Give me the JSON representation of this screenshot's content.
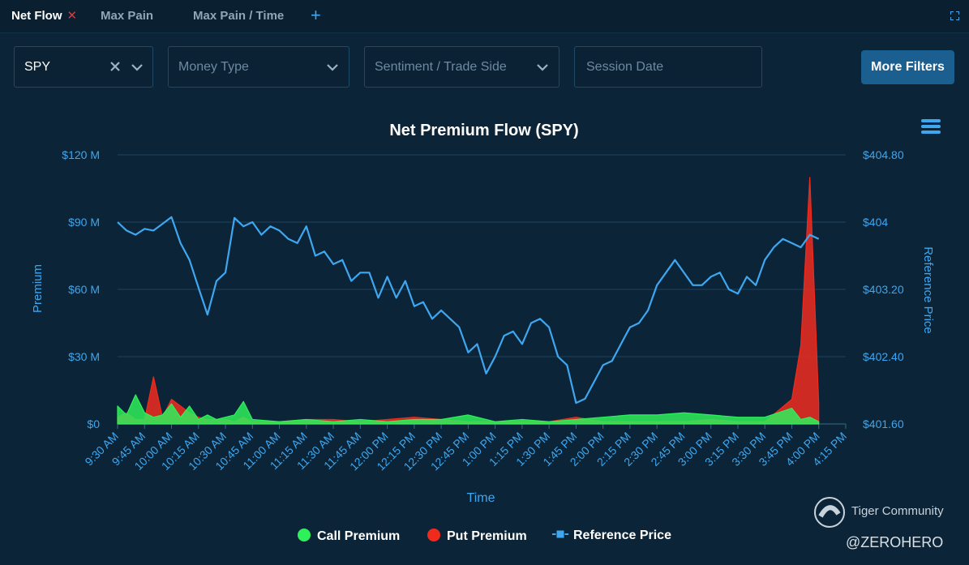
{
  "tabs": [
    {
      "label": "Net Flow",
      "active": true,
      "closable": true
    },
    {
      "label": "Max Pain",
      "active": false
    },
    {
      "label": "Max Pain / Time",
      "active": false
    }
  ],
  "filters": {
    "symbol": "SPY",
    "money_type_placeholder": "Money Type",
    "sentiment_placeholder": "Sentiment / Trade Side",
    "session_date_placeholder": "Session Date",
    "more_filters_label": "More Filters"
  },
  "watermark": {
    "brand": "Tiger Community",
    "user": "@ZEROHERO"
  },
  "colors": {
    "call": "#2ef05a",
    "put": "#ef2b1e",
    "price": "#3ea7f0",
    "accent": "#1a5f90"
  },
  "chart_data": {
    "type": "line",
    "title": "Net Premium Flow (SPY)",
    "xlabel": "Time",
    "ylabel": "Premium",
    "y2label": "Reference Price",
    "categories": [
      "9:30 AM",
      "9:45 AM",
      "10:00 AM",
      "10:15 AM",
      "10:30 AM",
      "10:45 AM",
      "11:00 AM",
      "11:15 AM",
      "11:30 AM",
      "11:45 AM",
      "12:00 PM",
      "12:15 PM",
      "12:30 PM",
      "12:45 PM",
      "1:00 PM",
      "1:15 PM",
      "1:30 PM",
      "1:45 PM",
      "2:00 PM",
      "2:15 PM",
      "2:30 PM",
      "2:45 PM",
      "3:00 PM",
      "3:15 PM",
      "3:30 PM",
      "3:45 PM",
      "4:00 PM",
      "4:15 PM"
    ],
    "y_ticks": [
      "$0",
      "$30 M",
      "$60 M",
      "$90 M",
      "$120 M"
    ],
    "y2_ticks": [
      "$401.60",
      "$402.40",
      "$403.20",
      "$404",
      "$404.80"
    ],
    "ylim": [
      0,
      120
    ],
    "y2lim": [
      401.6,
      404.8
    ],
    "grid": true,
    "legend_position": "bottom",
    "series": [
      {
        "name": "Call Premium",
        "axis": "left",
        "unit": "$M",
        "kind": "area",
        "x": [
          "9:30 AM",
          "9:35 AM",
          "9:40 AM",
          "9:45 AM",
          "9:50 AM",
          "9:55 AM",
          "10:00 AM",
          "10:05 AM",
          "10:10 AM",
          "10:15 AM",
          "10:20 AM",
          "10:25 AM",
          "10:30 AM",
          "10:35 AM",
          "10:40 AM",
          "10:45 AM",
          "11:00 AM",
          "11:15 AM",
          "11:30 AM",
          "11:45 AM",
          "12:00 PM",
          "12:15 PM",
          "12:30 PM",
          "12:45 PM",
          "1:00 PM",
          "1:15 PM",
          "1:30 PM",
          "1:45 PM",
          "2:00 PM",
          "2:15 PM",
          "2:30 PM",
          "2:45 PM",
          "3:00 PM",
          "3:15 PM",
          "3:30 PM",
          "3:45 PM",
          "3:50 PM",
          "3:55 PM",
          "4:00 PM"
        ],
        "values": [
          8,
          4,
          13,
          5,
          3,
          4,
          9,
          3,
          8,
          2,
          4,
          2,
          3,
          4,
          10,
          2,
          1,
          2,
          1,
          2,
          1,
          2,
          2,
          4,
          1,
          2,
          1,
          2,
          3,
          4,
          4,
          5,
          4,
          3,
          3,
          7,
          2,
          3,
          1
        ]
      },
      {
        "name": "Put Premium",
        "axis": "left",
        "unit": "$M",
        "kind": "area",
        "x": [
          "9:30 AM",
          "9:35 AM",
          "9:40 AM",
          "9:45 AM",
          "9:50 AM",
          "9:55 AM",
          "10:00 AM",
          "10:05 AM",
          "10:10 AM",
          "10:15 AM",
          "10:20 AM",
          "10:25 AM",
          "10:30 AM",
          "10:35 AM",
          "10:40 AM",
          "10:45 AM",
          "11:00 AM",
          "11:15 AM",
          "11:30 AM",
          "11:45 AM",
          "12:00 PM",
          "12:15 PM",
          "12:30 PM",
          "12:45 PM",
          "1:00 PM",
          "1:15 PM",
          "1:30 PM",
          "1:45 PM",
          "2:00 PM",
          "2:15 PM",
          "2:30 PM",
          "2:45 PM",
          "3:00 PM",
          "3:15 PM",
          "3:30 PM",
          "3:45 PM",
          "3:50 PM",
          "3:55 PM",
          "4:00 PM"
        ],
        "values": [
          3,
          5,
          2,
          2,
          21,
          3,
          11,
          8,
          5,
          3,
          2,
          2,
          2,
          1,
          3,
          1,
          1,
          2,
          2,
          1,
          2,
          3,
          2,
          1,
          1,
          1,
          1,
          3,
          1,
          1,
          1,
          1,
          2,
          1,
          1,
          11,
          35,
          110,
          9
        ]
      },
      {
        "name": "Reference Price",
        "axis": "right",
        "unit": "$",
        "kind": "line",
        "x": [
          "9:30 AM",
          "9:35 AM",
          "9:40 AM",
          "9:45 AM",
          "9:50 AM",
          "9:55 AM",
          "10:00 AM",
          "10:05 AM",
          "10:10 AM",
          "10:15 AM",
          "10:20 AM",
          "10:25 AM",
          "10:30 AM",
          "10:35 AM",
          "10:40 AM",
          "10:45 AM",
          "10:50 AM",
          "10:55 AM",
          "11:00 AM",
          "11:05 AM",
          "11:10 AM",
          "11:15 AM",
          "11:20 AM",
          "11:25 AM",
          "11:30 AM",
          "11:35 AM",
          "11:40 AM",
          "11:45 AM",
          "11:50 AM",
          "11:55 AM",
          "12:00 PM",
          "12:05 PM",
          "12:10 PM",
          "12:15 PM",
          "12:20 PM",
          "12:25 PM",
          "12:30 PM",
          "12:35 PM",
          "12:40 PM",
          "12:45 PM",
          "12:50 PM",
          "12:55 PM",
          "1:00 PM",
          "1:05 PM",
          "1:10 PM",
          "1:15 PM",
          "1:20 PM",
          "1:25 PM",
          "1:30 PM",
          "1:35 PM",
          "1:40 PM",
          "1:45 PM",
          "1:50 PM",
          "1:55 PM",
          "2:00 PM",
          "2:05 PM",
          "2:10 PM",
          "2:15 PM",
          "2:20 PM",
          "2:25 PM",
          "2:30 PM",
          "2:35 PM",
          "2:40 PM",
          "2:45 PM",
          "2:50 PM",
          "2:55 PM",
          "3:00 PM",
          "3:05 PM",
          "3:10 PM",
          "3:15 PM",
          "3:20 PM",
          "3:25 PM",
          "3:30 PM",
          "3:35 PM",
          "3:40 PM",
          "3:45 PM",
          "3:50 PM",
          "3:55 PM",
          "4:00 PM"
        ],
        "values": [
          404.0,
          403.9,
          403.85,
          403.92,
          403.9,
          403.98,
          404.06,
          403.75,
          403.55,
          403.22,
          402.9,
          403.3,
          403.4,
          404.05,
          403.95,
          404.0,
          403.85,
          403.95,
          403.9,
          403.8,
          403.75,
          403.95,
          403.6,
          403.65,
          403.5,
          403.55,
          403.3,
          403.4,
          403.4,
          403.1,
          403.35,
          403.1,
          403.3,
          403.0,
          403.05,
          402.85,
          402.95,
          402.85,
          402.75,
          402.45,
          402.55,
          402.2,
          402.4,
          402.65,
          402.7,
          402.55,
          402.8,
          402.85,
          402.75,
          402.4,
          402.3,
          401.85,
          401.9,
          402.1,
          402.3,
          402.35,
          402.55,
          402.75,
          402.8,
          402.95,
          403.25,
          403.4,
          403.55,
          403.4,
          403.25,
          403.25,
          403.35,
          403.4,
          403.2,
          403.15,
          403.35,
          403.25,
          403.55,
          403.7,
          403.8,
          403.75,
          403.7,
          403.85,
          403.8
        ]
      }
    ]
  }
}
